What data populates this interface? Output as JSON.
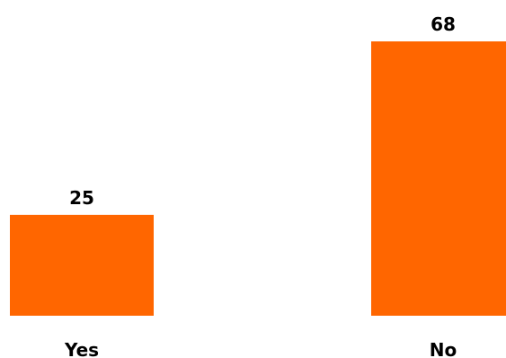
{
  "chart_data": {
    "type": "bar",
    "title": "",
    "xlabel": "",
    "ylabel": "",
    "categories": [
      "Yes",
      "No"
    ],
    "values": [
      25,
      68
    ],
    "ylim": [
      0,
      68
    ],
    "grid": false,
    "legend": "none",
    "bar_color": "#ff6600",
    "value_labels": true
  }
}
